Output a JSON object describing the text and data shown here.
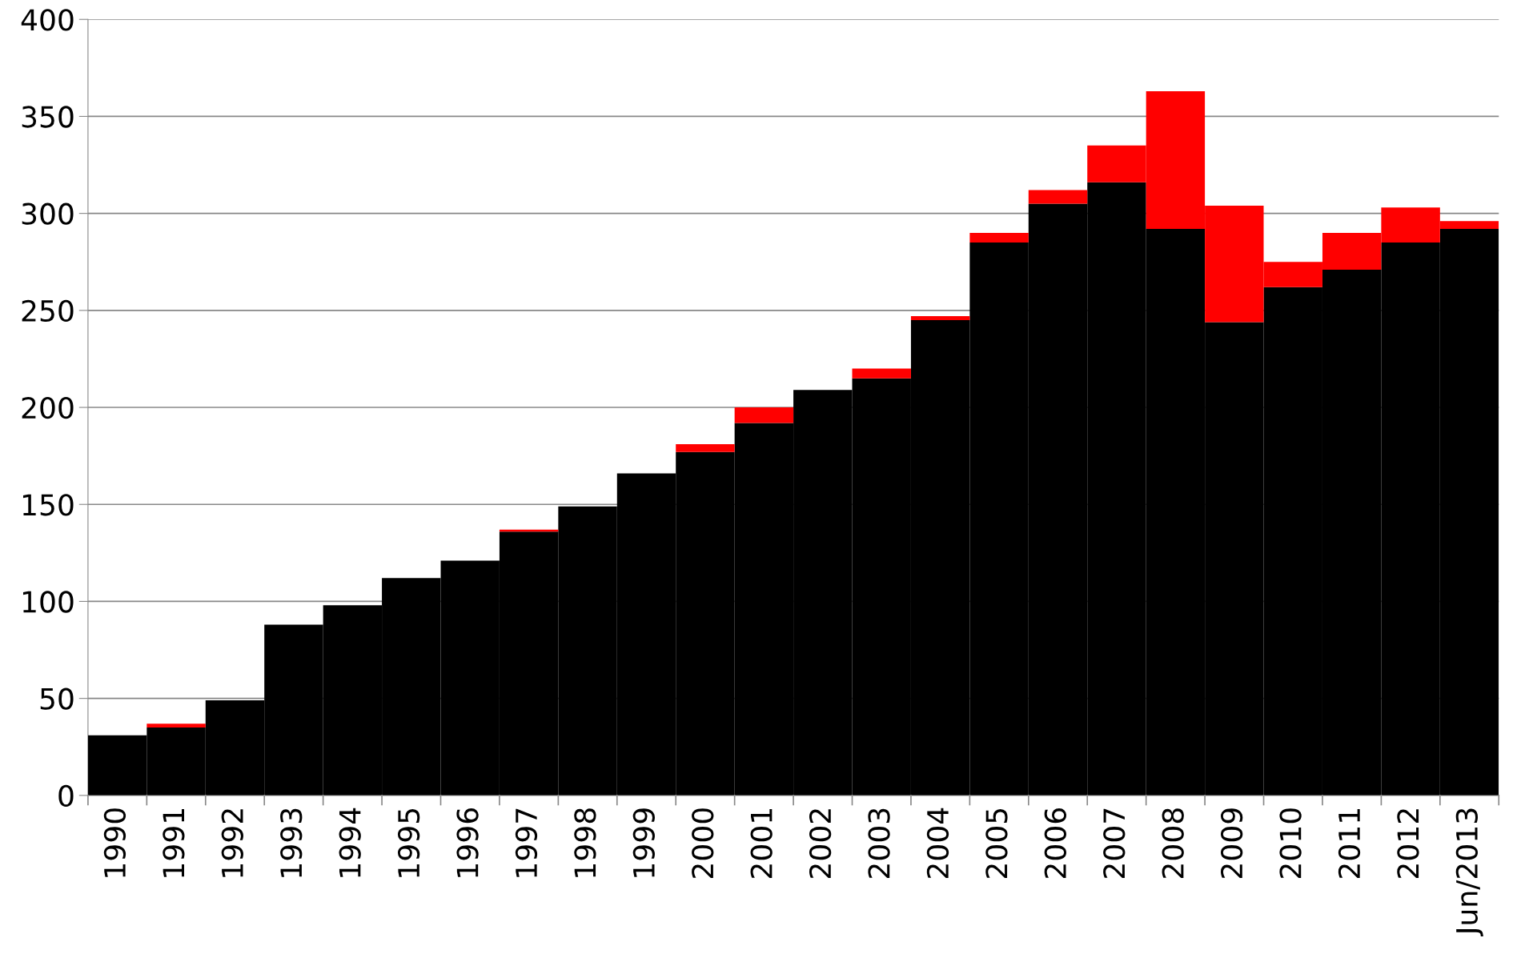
{
  "chart_data": {
    "type": "bar",
    "stacked": true,
    "categories": [
      "1990",
      "1991",
      "1992",
      "1993",
      "1994",
      "1995",
      "1996",
      "1997",
      "1998",
      "1999",
      "2000",
      "2001",
      "2002",
      "2003",
      "2004",
      "2005",
      "2006",
      "2007",
      "2008",
      "2009",
      "2010",
      "2011",
      "2012",
      "Jun/2013"
    ],
    "series": [
      {
        "color": "#000000",
        "values": [
          31,
          35,
          49,
          88,
          98,
          112,
          121,
          136,
          149,
          166,
          177,
          192,
          209,
          215,
          245,
          285,
          305,
          316,
          292,
          244,
          262,
          271,
          285,
          292
        ]
      },
      {
        "color": "#ff0000",
        "values": [
          0,
          2,
          0,
          0,
          0,
          0,
          0,
          1,
          0,
          0,
          4,
          8,
          0,
          5,
          2,
          5,
          7,
          19,
          71,
          60,
          13,
          19,
          18,
          4
        ]
      }
    ],
    "ylim": [
      0,
      400
    ],
    "yticks": [
      0,
      50,
      100,
      150,
      200,
      250,
      300,
      350,
      400
    ],
    "grid": "y",
    "legend": false
  }
}
